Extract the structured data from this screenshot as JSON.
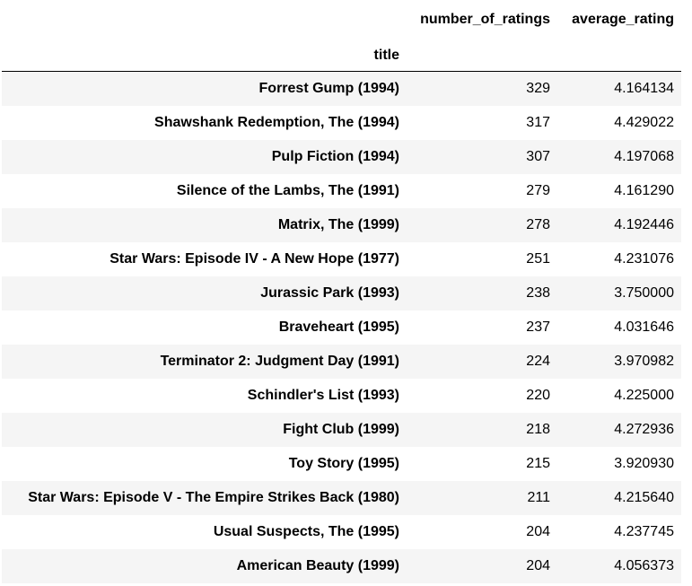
{
  "table": {
    "columns": [
      "number_of_ratings",
      "average_rating"
    ],
    "index_name": "title",
    "rows": [
      {
        "title": "Forrest Gump (1994)",
        "number_of_ratings": "329",
        "average_rating": "4.164134"
      },
      {
        "title": "Shawshank Redemption, The (1994)",
        "number_of_ratings": "317",
        "average_rating": "4.429022"
      },
      {
        "title": "Pulp Fiction (1994)",
        "number_of_ratings": "307",
        "average_rating": "4.197068"
      },
      {
        "title": "Silence of the Lambs, The (1991)",
        "number_of_ratings": "279",
        "average_rating": "4.161290"
      },
      {
        "title": "Matrix, The (1999)",
        "number_of_ratings": "278",
        "average_rating": "4.192446"
      },
      {
        "title": "Star Wars: Episode IV - A New Hope (1977)",
        "number_of_ratings": "251",
        "average_rating": "4.231076"
      },
      {
        "title": "Jurassic Park (1993)",
        "number_of_ratings": "238",
        "average_rating": "3.750000"
      },
      {
        "title": "Braveheart (1995)",
        "number_of_ratings": "237",
        "average_rating": "4.031646"
      },
      {
        "title": "Terminator 2: Judgment Day (1991)",
        "number_of_ratings": "224",
        "average_rating": "3.970982"
      },
      {
        "title": "Schindler's List (1993)",
        "number_of_ratings": "220",
        "average_rating": "4.225000"
      },
      {
        "title": "Fight Club (1999)",
        "number_of_ratings": "218",
        "average_rating": "4.272936"
      },
      {
        "title": "Toy Story (1995)",
        "number_of_ratings": "215",
        "average_rating": "3.920930"
      },
      {
        "title": "Star Wars: Episode V - The Empire Strikes Back (1980)",
        "number_of_ratings": "211",
        "average_rating": "4.215640"
      },
      {
        "title": "Usual Suspects, The (1995)",
        "number_of_ratings": "204",
        "average_rating": "4.237745"
      },
      {
        "title": "American Beauty (1999)",
        "number_of_ratings": "204",
        "average_rating": "4.056373"
      }
    ]
  }
}
